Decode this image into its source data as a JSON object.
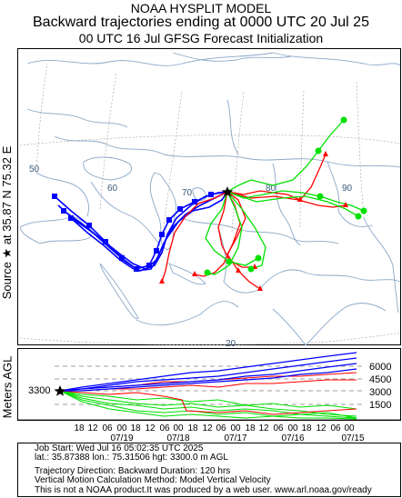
{
  "header": {
    "line1": "NOAA HYSPLIT MODEL",
    "line2": "Backward trajectories ending at 0000 UTC 20 Jul 25",
    "line3": "00 UTC 16 Jul    GFSG  Forecast Initialization"
  },
  "side_label": "Source ★ at    35.87 N    75.32 E",
  "map": {
    "lon_labels": [
      "50",
      "60",
      "70",
      "80",
      "90"
    ],
    "lat_labels": [
      "20"
    ]
  },
  "vertical": {
    "axis_label": "Meters AGL",
    "source_height": "3300",
    "height_ticks": [
      "6000",
      "4500",
      "3000",
      "1500"
    ],
    "hour_ticks": [
      "18",
      "12",
      "06",
      "00",
      "18",
      "12",
      "06",
      "00",
      "18",
      "12",
      "06",
      "00",
      "18",
      "12",
      "06",
      "00",
      "18",
      "12",
      "06",
      "00"
    ],
    "date_ticks": [
      "07/19",
      "07/18",
      "07/17",
      "07/16",
      "07/15"
    ]
  },
  "footer": {
    "job_start": "Job Start: Wed Jul 16 05:02:35 UTC 2025",
    "location": "lat.: 35.87388   lon.: 75.31506   hgt: 3300.0 m AGL",
    "direction": "Trajectory Direction: Backward       Duration: 120 hrs",
    "vertical_method": "Vertical Motion Calculation Method: Model Vertical Velocity",
    "disclaimer": "This is not a NOAA product.It was produced by a web user. www.arl.noaa.gov/ready"
  },
  "colors": {
    "red": "#ff0000",
    "blue": "#0000ff",
    "green": "#00e000",
    "map_lines": "#8aa8c8",
    "grid": "#a0a0a0"
  }
}
